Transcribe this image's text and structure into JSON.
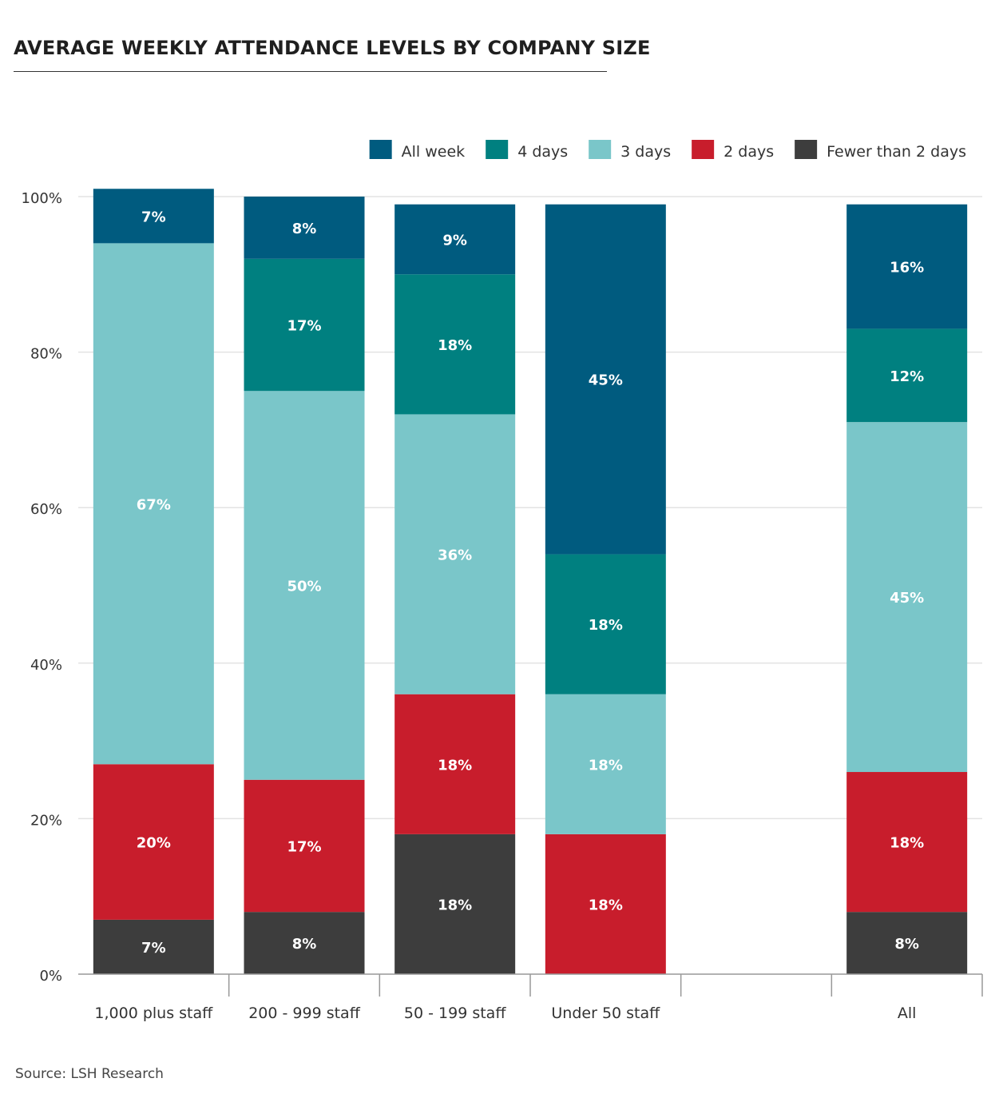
{
  "title": "AVERAGE WEEKLY ATTENDANCE LEVELS BY COMPANY SIZE",
  "source": "Source: LSH Research",
  "colors": {
    "all_week": "#005b7f",
    "four_days": "#008080",
    "three_days": "#7ac6c9",
    "two_days": "#c81d2c",
    "fewer_than_two": "#3d3d3d",
    "grid": "#e3e3e3",
    "axis": "#999999"
  },
  "chart_data": {
    "type": "bar",
    "stacked": true,
    "title": "AVERAGE WEEKLY ATTENDANCE LEVELS BY COMPANY SIZE",
    "categories": [
      "1,000 plus staff",
      "200 - 999 staff",
      "50 - 199 staff",
      "Under 50 staff",
      "",
      "All"
    ],
    "series": [
      {
        "name": "Fewer than  2 days",
        "values": [
          7,
          8,
          18,
          0,
          null,
          8
        ],
        "labels": [
          "7%",
          "8%",
          "18%",
          "",
          "",
          "8%"
        ]
      },
      {
        "name": "2 days",
        "values": [
          20,
          17,
          18,
          18,
          null,
          18
        ],
        "labels": [
          "20%",
          "17%",
          "18%",
          "18%",
          "",
          "18%"
        ]
      },
      {
        "name": "3 days",
        "values": [
          67,
          50,
          36,
          18,
          null,
          45
        ],
        "labels": [
          "67%",
          "50%",
          "36%",
          "18%",
          "",
          "45%"
        ]
      },
      {
        "name": "4 days",
        "values": [
          0,
          17,
          18,
          18,
          null,
          12
        ],
        "labels": [
          "",
          "17%",
          "18%",
          "18%",
          "",
          "12%"
        ]
      },
      {
        "name": "All week",
        "values": [
          7,
          8,
          9,
          45,
          null,
          16
        ],
        "labels": [
          "7%",
          "8%",
          "9%",
          "45%",
          "",
          "16%"
        ]
      }
    ],
    "legend": [
      "All week",
      "4 days",
      "3 days",
      "2 days",
      "Fewer than  2 days"
    ],
    "legend_position": "top-right",
    "ylim": [
      0,
      100
    ],
    "yticks": [
      "0%",
      "20%",
      "40%",
      "60%",
      "80%",
      "100%"
    ],
    "grid": true,
    "xlabel": "",
    "ylabel": ""
  }
}
